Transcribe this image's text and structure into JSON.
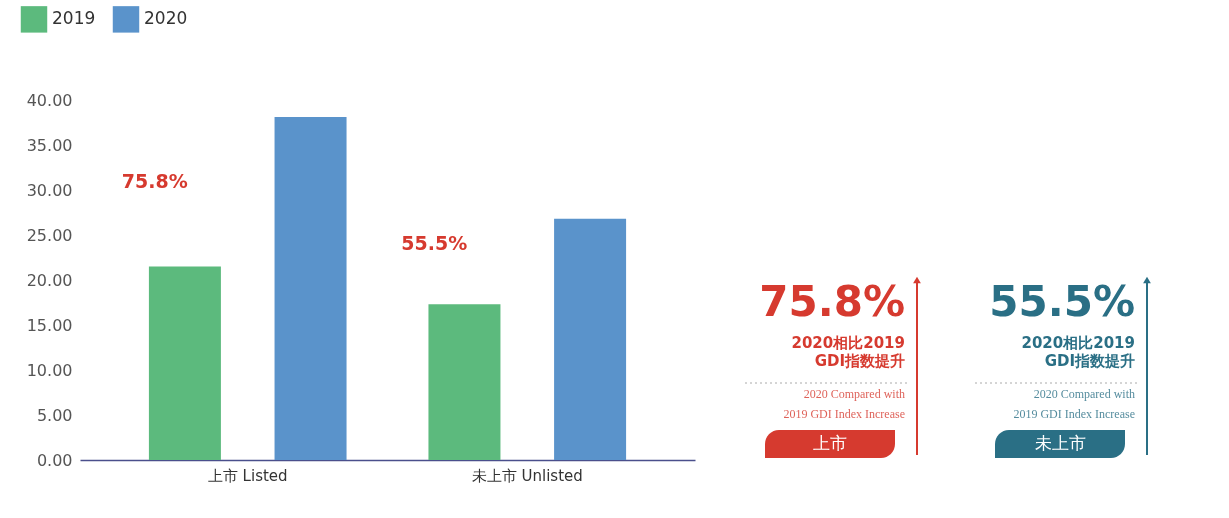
{
  "chart_data": {
    "type": "bar",
    "categories": [
      "上市 Listed",
      "未上市 Unlisted"
    ],
    "series": [
      {
        "name": "2019",
        "color": "#5cba7d",
        "values": [
          21.5,
          17.3
        ]
      },
      {
        "name": "2020",
        "color": "#5a93cb",
        "values": [
          38.1,
          26.8
        ]
      }
    ],
    "ylim": [
      0,
      40
    ],
    "yticks": [
      {
        "value": 0,
        "label": "0.00"
      },
      {
        "value": 5,
        "label": "5.00"
      },
      {
        "value": 10,
        "label": "10.00"
      },
      {
        "value": 15,
        "label": "15.00"
      },
      {
        "value": 20,
        "label": "20.00"
      },
      {
        "value": 25,
        "label": "25.00"
      },
      {
        "value": 30,
        "label": "30.00"
      },
      {
        "value": 35,
        "label": "35.00"
      },
      {
        "value": 40,
        "label": "40.00"
      }
    ],
    "grid": false,
    "legend": "top left",
    "annotations": [
      "75.8%",
      "55.5%",
      "75.8%",
      "2020相比2019",
      "GDI指数提升",
      "2020 Compared with",
      "2019 GDI Index Increase",
      "上市",
      "55.5%",
      "2020相比2019",
      "GDI指数提升",
      "2020 Compared with",
      "2019 GDI Index Increase",
      "未上市"
    ]
  }
}
